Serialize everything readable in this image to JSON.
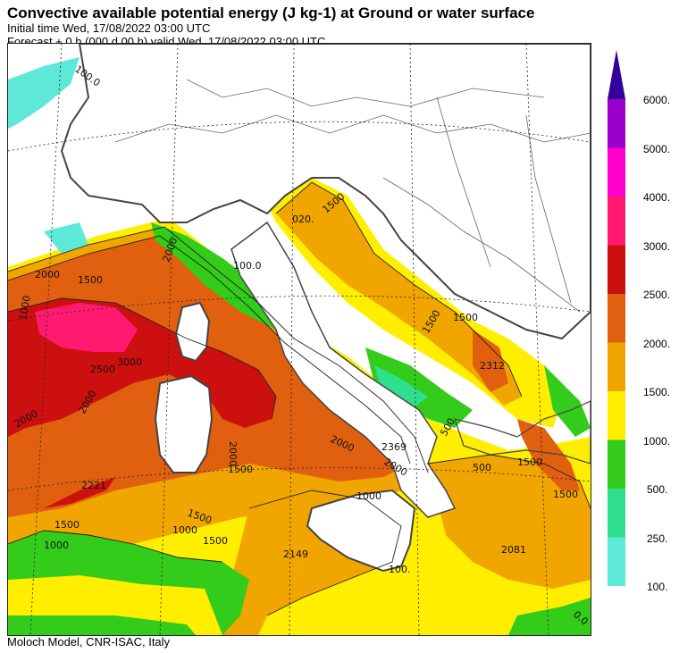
{
  "header": {
    "title": "Convective available potential energy (J kg-1) at Ground or water surface",
    "initial_time": "Initial time  Wed, 17/08/2022  03:00 UTC",
    "forecast": "Forecast  +   0 h  (000 d 00 h)  valid Wed, 17/08/2022 03:00 UTC"
  },
  "footer": "Moloch Model, CNR-ISAC, Italy",
  "legend": {
    "levels": [
      {
        "label": "100.",
        "color": "#5ee8d8"
      },
      {
        "label": "250.",
        "color": "#2ee08e"
      },
      {
        "label": "500.",
        "color": "#33cc1a"
      },
      {
        "label": "1000.",
        "color": "#ffee00"
      },
      {
        "label": "1500.",
        "color": "#f0a500"
      },
      {
        "label": "2000.",
        "color": "#e06010"
      },
      {
        "label": "2500.",
        "color": "#cc1010"
      },
      {
        "label": "3000.",
        "color": "#ff1a70"
      },
      {
        "label": "4000.",
        "color": "#ff00cc"
      },
      {
        "label": "5000.",
        "color": "#9900cc"
      },
      {
        "label": "6000.",
        "color": "#330099"
      }
    ]
  },
  "contour_labels": [
    "100.0",
    "100.0",
    "1000",
    "1500",
    "2000",
    "2000",
    "2500",
    "3000",
    "2000",
    "2000",
    "2000",
    "2221",
    "1500",
    "1500",
    "1500",
    "1000",
    "2000",
    "2000",
    "2369",
    "1000",
    "1000",
    "2149",
    "100.",
    "2312",
    "1500",
    "500",
    "1500",
    "1500",
    "2081",
    "1500",
    "020.",
    "1500",
    "500",
    "1500",
    "0.0"
  ]
}
